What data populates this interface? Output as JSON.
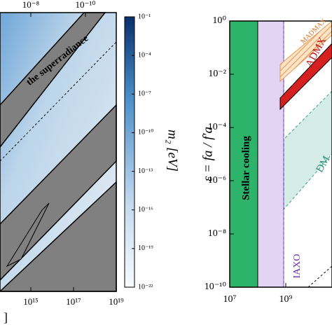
{
  "left_panel": {
    "top_xticks": [
      {
        "value": 1e-08,
        "label": "10⁻⁸"
      },
      {
        "value": 1e-10,
        "label": "10⁻¹⁰"
      }
    ],
    "xticks": [
      {
        "value": 1000000000000000.0,
        "label": "10¹⁵"
      },
      {
        "value": 1e+17,
        "label": "10¹⁷"
      },
      {
        "value": 1e+19,
        "label": "10¹⁹"
      }
    ],
    "xlabel_fragment": "]",
    "annotation": "the superradiance"
  },
  "colorbar": {
    "label": "m₂ [eV]",
    "ticks": [
      {
        "value": 0.1,
        "label": "10⁻¹"
      },
      {
        "value": 0.0001,
        "label": "10⁻⁴"
      },
      {
        "value": 1e-07,
        "label": "10⁻⁷"
      },
      {
        "value": 1e-10,
        "label": "10⁻¹⁰"
      },
      {
        "value": 1e-13,
        "label": "10⁻¹³"
      },
      {
        "value": 1e-16,
        "label": "10⁻¹⁶"
      },
      {
        "value": 1e-19,
        "label": "10⁻¹⁹"
      },
      {
        "value": 1e-22,
        "label": "10⁻²²"
      }
    ]
  },
  "right_panel": {
    "ylabel": "ε = fa / f′a",
    "yticks": [
      {
        "value": 1,
        "label": "10⁰"
      },
      {
        "value": 0.01,
        "label": "10⁻²"
      },
      {
        "value": 0.0001,
        "label": "10⁻⁴"
      },
      {
        "value": 1e-06,
        "label": "10⁻⁶"
      },
      {
        "value": 1e-08,
        "label": "10⁻⁸"
      },
      {
        "value": 1e-10,
        "label": "10⁻¹⁰"
      }
    ],
    "xticks": [
      {
        "value": 10000000.0,
        "label": "10⁷"
      },
      {
        "value": 1000000000.0,
        "label": "10⁹"
      }
    ],
    "regions": [
      "Stellar cooling",
      "IAXO",
      "ADMX",
      "MADMAX",
      "DM"
    ]
  }
}
